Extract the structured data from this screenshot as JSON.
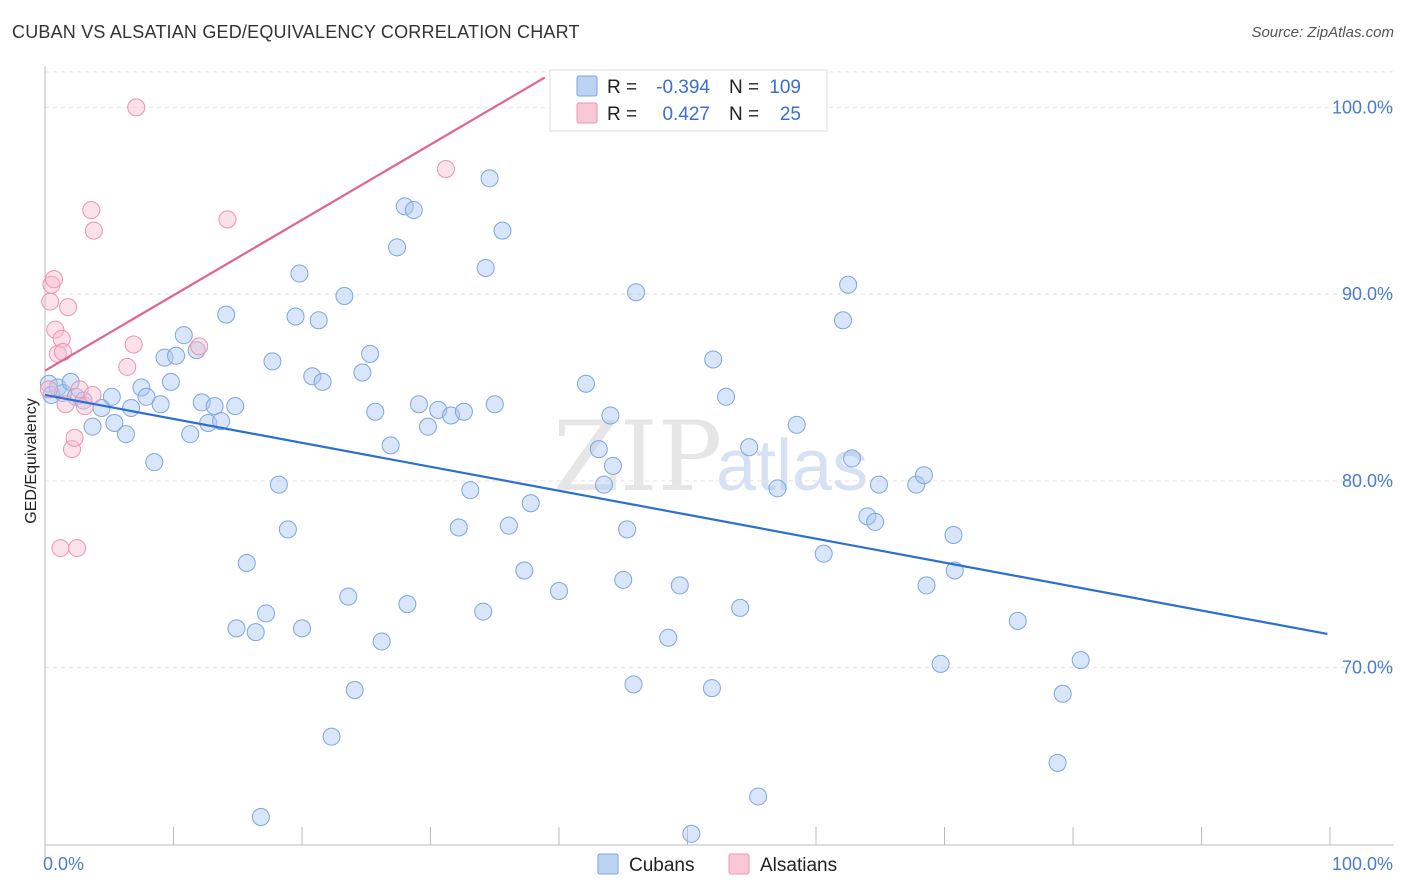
{
  "header": {
    "title": "CUBAN VS ALSATIAN GED/EQUIVALENCY CORRELATION CHART",
    "source": "Source: ZipAtlas.com"
  },
  "watermark": {
    "part1": "ZIP",
    "part2": "atlas"
  },
  "colors": {
    "cubans": "#6f9fe0",
    "alsatians": "#f08aaa",
    "cubans_line": "#2b6fcf",
    "alsatians_line": "#e0648f"
  },
  "chart_data": {
    "type": "scatter",
    "title": "CUBAN VS ALSATIAN GED/EQUIVALENCY CORRELATION CHART",
    "xlabel": "",
    "ylabel": "GED/Equivalency",
    "xlim": [
      0,
      100
    ],
    "ylim": [
      60.5,
      102
    ],
    "x_tick_labels": [
      "0.0%",
      "100.0%"
    ],
    "y_ticks": [
      70,
      80,
      90,
      100
    ],
    "y_tick_labels": [
      "70.0%",
      "80.0%",
      "90.0%",
      "100.0%"
    ],
    "legend": {
      "rows": [
        {
          "r_label": "R =",
          "r_value": "-0.394",
          "n_label": "N =",
          "n_value": "109"
        },
        {
          "r_label": "R =",
          "r_value": "0.427",
          "n_label": "N =",
          "n_value": "25"
        }
      ]
    },
    "series": [
      {
        "name": "Cubans",
        "trend": {
          "x": [
            0,
            99.8
          ],
          "y": [
            84.6,
            71.8
          ]
        },
        "points": [
          [
            0.3,
            85.2
          ],
          [
            0.5,
            84.6
          ],
          [
            1.0,
            85.0
          ],
          [
            1.4,
            84.7
          ],
          [
            2.0,
            85.3
          ],
          [
            2.4,
            84.5
          ],
          [
            3.0,
            84.3
          ],
          [
            3.7,
            82.9
          ],
          [
            4.4,
            83.9
          ],
          [
            5.2,
            84.5
          ],
          [
            5.4,
            83.1
          ],
          [
            6.3,
            82.5
          ],
          [
            6.7,
            83.9
          ],
          [
            7.5,
            85.0
          ],
          [
            7.9,
            84.5
          ],
          [
            8.5,
            81.0
          ],
          [
            9.0,
            84.1
          ],
          [
            9.3,
            86.6
          ],
          [
            9.8,
            85.3
          ],
          [
            10.2,
            86.7
          ],
          [
            10.8,
            87.8
          ],
          [
            11.3,
            82.5
          ],
          [
            11.8,
            87.0
          ],
          [
            12.2,
            84.2
          ],
          [
            12.7,
            83.1
          ],
          [
            13.2,
            84.0
          ],
          [
            13.7,
            83.2
          ],
          [
            14.1,
            88.9
          ],
          [
            14.8,
            84.0
          ],
          [
            15.7,
            75.6
          ],
          [
            14.9,
            72.1
          ],
          [
            16.4,
            71.9
          ],
          [
            16.8,
            62.0
          ],
          [
            17.2,
            72.9
          ],
          [
            17.7,
            86.4
          ],
          [
            18.2,
            79.8
          ],
          [
            18.9,
            77.4
          ],
          [
            19.5,
            88.8
          ],
          [
            19.8,
            91.1
          ],
          [
            20.0,
            72.1
          ],
          [
            20.8,
            85.6
          ],
          [
            21.6,
            85.3
          ],
          [
            21.3,
            88.6
          ],
          [
            22.3,
            66.3
          ],
          [
            23.3,
            89.9
          ],
          [
            23.6,
            73.8
          ],
          [
            24.1,
            68.8
          ],
          [
            24.7,
            85.8
          ],
          [
            25.3,
            86.8
          ],
          [
            25.7,
            83.7
          ],
          [
            26.2,
            71.4
          ],
          [
            26.9,
            81.9
          ],
          [
            27.4,
            92.5
          ],
          [
            28.0,
            94.7
          ],
          [
            28.2,
            73.4
          ],
          [
            28.7,
            94.5
          ],
          [
            29.1,
            84.1
          ],
          [
            29.8,
            82.9
          ],
          [
            30.6,
            83.8
          ],
          [
            31.6,
            83.5
          ],
          [
            32.2,
            77.5
          ],
          [
            32.6,
            83.7
          ],
          [
            33.1,
            79.5
          ],
          [
            34.1,
            73.0
          ],
          [
            34.3,
            91.4
          ],
          [
            35.0,
            84.1
          ],
          [
            35.6,
            93.4
          ],
          [
            36.1,
            77.6
          ],
          [
            37.3,
            75.2
          ],
          [
            37.8,
            78.8
          ],
          [
            40.0,
            74.1
          ],
          [
            42.1,
            85.2
          ],
          [
            43.1,
            81.7
          ],
          [
            43.5,
            79.8
          ],
          [
            44.0,
            83.5
          ],
          [
            44.2,
            80.8
          ],
          [
            45.0,
            74.7
          ],
          [
            45.3,
            77.4
          ],
          [
            45.8,
            69.1
          ],
          [
            46.0,
            90.1
          ],
          [
            48.5,
            71.6
          ],
          [
            49.4,
            74.4
          ],
          [
            50.3,
            61.1
          ],
          [
            51.9,
            68.9
          ],
          [
            52.0,
            86.5
          ],
          [
            53.0,
            84.5
          ],
          [
            54.1,
            73.2
          ],
          [
            54.8,
            81.8
          ],
          [
            55.5,
            63.1
          ],
          [
            57.0,
            79.6
          ],
          [
            58.5,
            83.0
          ],
          [
            60.6,
            76.1
          ],
          [
            62.1,
            88.6
          ],
          [
            62.5,
            90.5
          ],
          [
            62.8,
            81.2
          ],
          [
            64.0,
            78.1
          ],
          [
            64.6,
            77.8
          ],
          [
            64.9,
            79.8
          ],
          [
            67.8,
            79.8
          ],
          [
            68.4,
            80.3
          ],
          [
            68.6,
            74.4
          ],
          [
            69.7,
            70.2
          ],
          [
            70.7,
            77.1
          ],
          [
            70.8,
            75.2
          ],
          [
            75.7,
            72.5
          ],
          [
            78.8,
            64.9
          ],
          [
            79.2,
            68.6
          ],
          [
            80.6,
            70.4
          ],
          [
            34.6,
            96.2
          ]
        ]
      },
      {
        "name": "Alsatians",
        "trend": {
          "x": [
            0,
            38.9
          ],
          "y": [
            85.9,
            101.6
          ]
        },
        "points": [
          [
            0.3,
            84.9
          ],
          [
            0.4,
            89.6
          ],
          [
            0.5,
            90.5
          ],
          [
            0.7,
            90.8
          ],
          [
            0.8,
            88.1
          ],
          [
            1.0,
            86.8
          ],
          [
            1.2,
            76.4
          ],
          [
            1.3,
            87.6
          ],
          [
            1.4,
            86.9
          ],
          [
            1.6,
            84.1
          ],
          [
            1.8,
            89.3
          ],
          [
            2.1,
            81.7
          ],
          [
            2.3,
            82.3
          ],
          [
            2.5,
            76.4
          ],
          [
            2.7,
            84.9
          ],
          [
            3.1,
            84.0
          ],
          [
            3.6,
            94.5
          ],
          [
            3.7,
            84.6
          ],
          [
            3.8,
            93.4
          ],
          [
            6.4,
            86.1
          ],
          [
            6.9,
            87.3
          ],
          [
            7.1,
            100.0
          ],
          [
            12.0,
            87.2
          ],
          [
            14.2,
            94.0
          ],
          [
            31.2,
            96.7
          ]
        ]
      }
    ]
  }
}
